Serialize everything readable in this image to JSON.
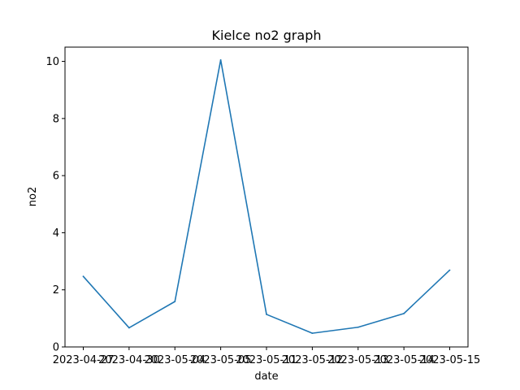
{
  "chart_data": {
    "type": "line",
    "title": "Kielce no2 graph",
    "xlabel": "date",
    "ylabel": "no2",
    "categories": [
      "2023-04-27",
      "2023-04-30",
      "2023-05-04",
      "2023-05-05",
      "2023-05-11",
      "2023-05-12",
      "2023-05-13",
      "2023-05-14",
      "2023-05-15"
    ],
    "series": [
      {
        "color": "#1f77b4",
        "values": [
          2.47,
          0.67,
          1.59,
          10.05,
          1.14,
          0.48,
          0.69,
          1.17,
          2.69
        ]
      }
    ],
    "ylim": [
      0,
      10.5
    ],
    "yticks": [
      0,
      2,
      4,
      6,
      8,
      10
    ],
    "grid": false,
    "legend": "none"
  }
}
